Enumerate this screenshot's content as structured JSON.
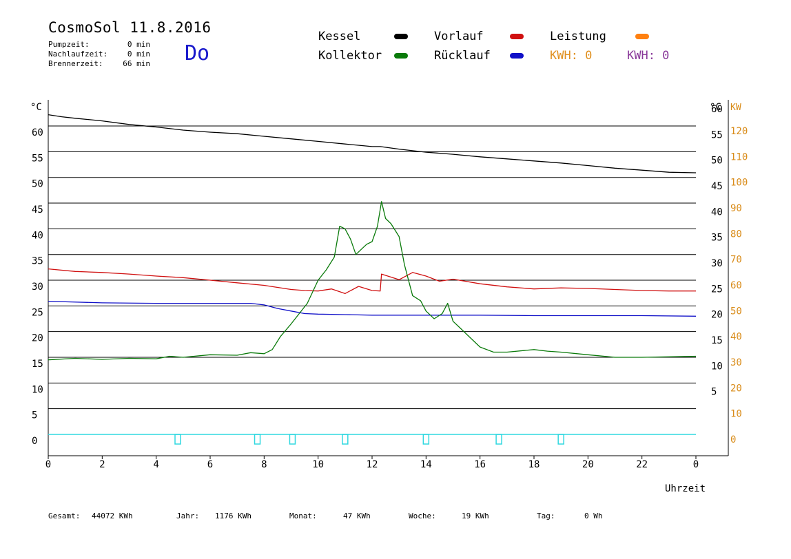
{
  "header": {
    "title": "CosmoSol 11.8.2016",
    "pumpzeit_label": "Pumpzeit:",
    "pumpzeit_value": "0 min",
    "nachlaufzeit_label": "Nachlaufzeit:",
    "nachlaufzeit_value": "0 min",
    "brennerzeit_label": "Brennerzeit:",
    "brennerzeit_value": "66 min",
    "day": "Do"
  },
  "legend": {
    "kessel": "Kessel",
    "kollektor": "Kollektor",
    "vorlauf": "Vorlauf",
    "ruecklauf": "Rücklauf",
    "leistung": "Leistung",
    "kwh_orange": "KWH: 0",
    "kwh_purple": "KWH: 0"
  },
  "colors": {
    "kessel": "#000000",
    "kollektor": "#0a7a0a",
    "vorlauf": "#d01010",
    "ruecklauf": "#1010c8",
    "leistung": "#ff8010",
    "kwh_orange": "#e09020",
    "kwh_purple": "#8a3a9a",
    "pump": "#30d8e0",
    "kw_axis": "#d98c1a"
  },
  "footer": {
    "gesamt_label": "Gesamt:",
    "gesamt_value": "44072 KWh",
    "jahr_label": "Jahr:",
    "jahr_value": "1176 KWh",
    "monat_label": "Monat:",
    "monat_value": "47 KWh",
    "woche_label": "Woche:",
    "woche_value": "19 KWh",
    "tag_label": "Tag:",
    "tag_value": "0 Wh"
  },
  "chart_data": {
    "type": "line",
    "xlabel": "Uhrzeit",
    "left_unit": "°C",
    "right_unit": "°C",
    "right_unit2": "KW",
    "x_ticks": [
      "0",
      "2",
      "4",
      "6",
      "8",
      "10",
      "12",
      "14",
      "16",
      "18",
      "20",
      "22",
      "0"
    ],
    "xlim": [
      0,
      24
    ],
    "ylim": [
      -4,
      65
    ],
    "y_ticks_left": [
      "0",
      "5",
      "10",
      "15",
      "20",
      "25",
      "30",
      "35",
      "40",
      "45",
      "50",
      "55",
      "60"
    ],
    "y_ticks_right": [
      "5",
      "10",
      "15",
      "20",
      "25",
      "30",
      "35",
      "40",
      "45",
      "50",
      "55",
      "60"
    ],
    "y_ticks_kw": [
      "0",
      "10",
      "20",
      "30",
      "40",
      "50",
      "60",
      "70",
      "80",
      "90",
      "100",
      "110",
      "120"
    ],
    "grid": true,
    "series": [
      {
        "name": "Kessel",
        "color": "#000000",
        "x": [
          0,
          0.5,
          1,
          2,
          3,
          4,
          5,
          6,
          7,
          8,
          9,
          10,
          11,
          12,
          12.3,
          13,
          14,
          15,
          16,
          17,
          18,
          19,
          20,
          21,
          22,
          23,
          24
        ],
        "y": [
          62.2,
          61.8,
          61.5,
          61.0,
          60.3,
          59.8,
          59.2,
          58.8,
          58.5,
          58.0,
          57.5,
          57.0,
          56.5,
          56.0,
          56.0,
          55.5,
          54.9,
          54.5,
          54.0,
          53.6,
          53.2,
          52.8,
          52.3,
          51.8,
          51.4,
          51.0,
          50.9
        ]
      },
      {
        "name": "Vorlauf",
        "color": "#d01010",
        "x": [
          0,
          1,
          2,
          3,
          4,
          5,
          6,
          7,
          8,
          9,
          9.5,
          10,
          10.5,
          11,
          11.5,
          12,
          12.3,
          12.35,
          13,
          13.5,
          14,
          14.5,
          15,
          16,
          17,
          18,
          19,
          20,
          21,
          22,
          23,
          24
        ],
        "y": [
          32.2,
          31.7,
          31.5,
          31.2,
          30.8,
          30.5,
          30.0,
          29.5,
          29.0,
          28.2,
          28.0,
          27.9,
          28.3,
          27.4,
          28.8,
          28.0,
          27.9,
          31.2,
          30.1,
          31.5,
          30.8,
          29.8,
          30.2,
          29.3,
          28.7,
          28.3,
          28.5,
          28.4,
          28.2,
          28.0,
          27.9,
          27.9
        ]
      },
      {
        "name": "Rücklauf",
        "color": "#1010c8",
        "x": [
          0,
          2,
          4,
          6,
          7,
          7.5,
          8,
          8.5,
          9,
          9.5,
          10,
          11,
          12,
          13,
          14,
          16,
          18,
          20,
          22,
          24
        ],
        "y": [
          25.9,
          25.6,
          25.5,
          25.5,
          25.5,
          25.5,
          25.2,
          24.5,
          24.0,
          23.5,
          23.4,
          23.3,
          23.2,
          23.2,
          23.2,
          23.2,
          23.1,
          23.1,
          23.1,
          23.0
        ]
      },
      {
        "name": "Kollektor",
        "color": "#0a7a0a",
        "x": [
          0,
          1,
          2,
          3,
          4,
          4.5,
          5,
          6,
          7,
          7.5,
          8,
          8.3,
          8.6,
          9,
          9.3,
          9.6,
          10,
          10.3,
          10.6,
          10.8,
          11,
          11.2,
          11.4,
          11.6,
          11.8,
          12,
          12.2,
          12.35,
          12.5,
          12.7,
          13,
          13.2,
          13.5,
          13.8,
          14,
          14.3,
          14.6,
          14.8,
          15,
          15.3,
          15.6,
          16,
          16.5,
          17,
          18,
          18.5,
          19,
          20,
          21,
          22,
          23,
          24
        ],
        "y": [
          14.5,
          14.8,
          14.6,
          14.8,
          14.7,
          15.2,
          15.0,
          15.5,
          15.4,
          15.9,
          15.7,
          16.5,
          19.0,
          21.5,
          23.5,
          25.5,
          30.0,
          32.0,
          34.5,
          40.5,
          40.0,
          38.0,
          35.0,
          36.0,
          37.0,
          37.5,
          40.5,
          45.3,
          42.0,
          41.0,
          38.5,
          33.0,
          27.0,
          26.0,
          24.0,
          22.5,
          23.5,
          25.5,
          22.0,
          20.5,
          19.0,
          17.0,
          16.0,
          16.0,
          16.5,
          16.2,
          16.0,
          15.5,
          15.0,
          15.0,
          15.1,
          15.2
        ]
      }
    ],
    "pump_markers_x": [
      4.8,
      7.75,
      9.05,
      11.0,
      14.0,
      16.7,
      19.0
    ]
  }
}
